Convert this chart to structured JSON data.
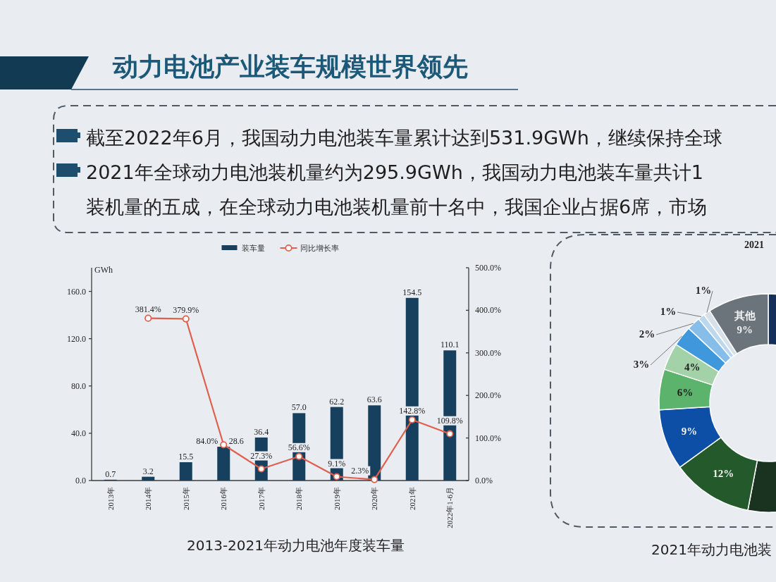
{
  "chart_data": [
    {
      "type": "other",
      "title": "动力电池产业装车规模世界领先",
      "annotations": [
        "截至2022年6月，我国动力电池装车量累计达到531.9GWh，继续保持全球",
        "2021年全球动力电池装机量约为295.9GWh，我国动力电池装车量共计1",
        "装机量的五成，在全球动力电池装机量前十名中，我国企业占据6席，市场"
      ]
    },
    {
      "type": "bar",
      "title": "2013-2021年动力电池年度装车量",
      "ylabel": "GWh",
      "categories": [
        "2013年",
        "2014年",
        "2015年",
        "2016年",
        "2017年",
        "2018年",
        "2019年",
        "2020年",
        "2021年",
        "2022年1-6月"
      ],
      "series": [
        {
          "name": "装车量",
          "type": "bar",
          "color": "#17405f",
          "values": [
            0.7,
            3.2,
            15.5,
            28.6,
            36.4,
            57.0,
            62.2,
            63.6,
            154.5,
            110.1
          ],
          "value_labels": [
            "0.7",
            "3.2",
            "15.5",
            "28.6",
            "36.4",
            "57.0",
            "62.2",
            "63.6",
            "154.5",
            "110.1"
          ]
        },
        {
          "name": "同比增长率",
          "type": "line",
          "axis": "y2",
          "color": "#e0604e",
          "marker": "circle",
          "values": [
            null,
            381.4,
            379.9,
            84.0,
            27.3,
            56.6,
            9.1,
            2.3,
            142.8,
            109.8
          ],
          "value_labels": [
            null,
            "381.4%",
            "379.9%",
            "84.0%",
            "27.3%",
            "56.6%",
            "9.1%",
            "2.3%",
            "142.8%",
            "109.8%"
          ]
        }
      ],
      "ylim": [
        0,
        180
      ],
      "yticks": [
        {
          "value": 0,
          "label": "0.0"
        },
        {
          "value": 40,
          "label": "40.0"
        },
        {
          "value": 80,
          "label": "80.0"
        },
        {
          "value": 120,
          "label": "120.0"
        },
        {
          "value": 160,
          "label": "160.0"
        }
      ],
      "y2lim": [
        0,
        500
      ],
      "y2ticks": [
        {
          "value": 0,
          "label": "0.0%"
        },
        {
          "value": 100,
          "label": "100.0%"
        },
        {
          "value": 200,
          "label": "200.0%"
        },
        {
          "value": 300,
          "label": "300.0%"
        },
        {
          "value": 400,
          "label": "400.0%"
        },
        {
          "value": 500,
          "label": "500.0%"
        }
      ],
      "legend": "top"
    },
    {
      "type": "donut",
      "title": "2021年动力电池装",
      "subtitle": "2021",
      "categories": [
        null,
        null,
        null,
        null,
        null,
        null,
        null,
        null,
        null,
        null,
        "其他"
      ],
      "values": [
        33,
        20,
        12,
        9,
        6,
        4,
        3,
        2,
        1,
        1,
        9
      ],
      "colors": [
        "#14305a",
        "#1a3321",
        "#245a2b",
        "#0d4ea6",
        "#5cb36b",
        "#a3d1a8",
        "#3f97dc",
        "#86bde9",
        "#bcd8ef",
        "#d7e1ea",
        "#6b737b"
      ],
      "value_labels": [
        null,
        null,
        "12%",
        "9%",
        "6%",
        "4%",
        "3%",
        "2%",
        "1%",
        "1%",
        "9%"
      ]
    }
  ]
}
